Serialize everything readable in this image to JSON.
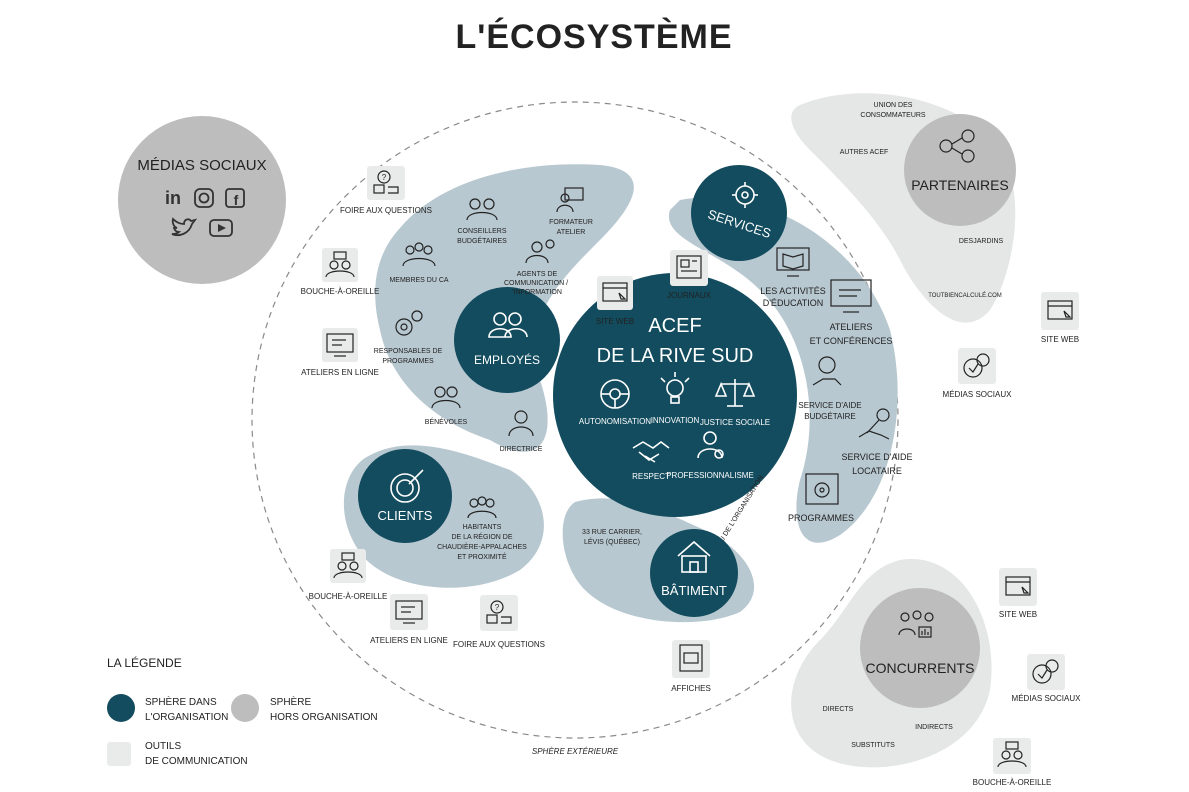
{
  "title": "L'ÉCOSYSTÈME",
  "core": {
    "line1": "ACEF",
    "line2": "DE LA RIVE SUD",
    "values": [
      "AUTONOMISATION",
      "INNOVATION",
      "JUSTICE SOCIALE",
      "RESPECT",
      "PROFESSIONNALISME"
    ],
    "ring_label": "NOYAU DE L'ORGANISATION"
  },
  "employes": {
    "label": "EMPLOYÉS",
    "members": [
      "CONSEILLERS BUDGÉTAIRES",
      "FORMATEUR ATELIER",
      "MEMBRES DU CA",
      "AGENTS DE COMMUNICATION / D'INFORMATION",
      "RESPONSABLES DE PROGRAMMES",
      "BÉNÉVOLES",
      "DIRECTRICE"
    ]
  },
  "services": {
    "label": "SERVICES",
    "items": [
      "LES ACTIVITÉS D'ÉDUCATION",
      "ATELIERS ET CONFÉRENCES",
      "SERVICE D'AIDE BUDGÉTAIRE",
      "SERVICE D'AIDE LOCATAIRE",
      "PROGRAMMES"
    ]
  },
  "clients": {
    "label": "CLIENTS",
    "description": "HABITANTS DE LA RÉGION DE CHAUDIÈRE-APPALACHES ET PROXIMITÉ"
  },
  "batiment": {
    "label": "BÂTIMENT",
    "address": "33 RUE CARRIER, LÉVIS (QUÉBEC)"
  },
  "inner_tools": {
    "site_web": "SITE WEB",
    "journaux": "JOURNAUX",
    "affiches": "AFFICHES"
  },
  "outer_tools": {
    "foire_top": "FOIRE AUX QUESTIONS",
    "bouche_left": "BOUCHE-À-OREILLE",
    "ateliers_left": "ATELIERS EN LIGNE",
    "bouche_bottom": "BOUCHE-À-OREILLE",
    "ateliers_bottom": "ATELIERS EN LIGNE",
    "foire_bottom": "FOIRE AUX QUESTIONS"
  },
  "medias_sociaux": {
    "label": "MÉDIAS SOCIAUX",
    "icons": [
      "linkedin-icon",
      "instagram-icon",
      "facebook-icon",
      "twitter-icon",
      "youtube-icon"
    ]
  },
  "partenaires": {
    "label": "PARTENAIRES",
    "items": [
      "UNION DES CONSOMMATEURS",
      "AUTRES ACEF",
      "DESJARDINS",
      "TOUTBIENCALCULÉ.COM"
    ],
    "tools": [
      "SITE WEB",
      "MÉDIAS SOCIAUX"
    ]
  },
  "concurrents": {
    "label": "CONCURRENTS",
    "items": [
      "DIRECTS",
      "INDIRECTS",
      "SUBSTITUTS"
    ],
    "tools": [
      "SITE WEB",
      "MÉDIAS SOCIAUX",
      "BOUCHE-À-OREILLE"
    ]
  },
  "outer_sphere_label": "SPHÈRE EXTÉRIEURE",
  "legend": {
    "title": "LA LÉGENDE",
    "inside_line1": "SPHÈRE DANS",
    "inside_line2": "L'ORGANISATION",
    "outside_line1": "SPHÈRE",
    "outside_line2": "HORS ORGANISATION",
    "tools_line1": "OUTILS",
    "tools_line2": "DE COMMUNICATION"
  },
  "colors": {
    "dark_teal": "#124c5e",
    "light_blue": "#b8c8d0",
    "grey": "#bdbdbd",
    "light_grey": "#e5e6e6",
    "tool_box": "#e9eaea"
  }
}
